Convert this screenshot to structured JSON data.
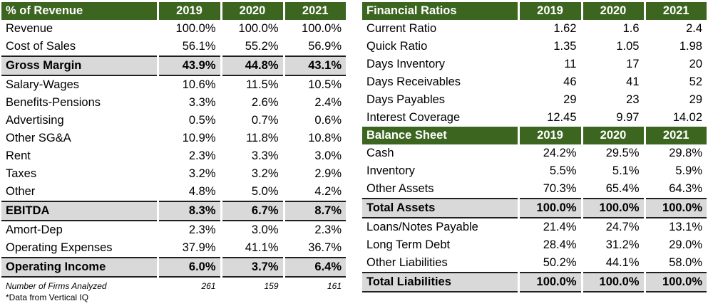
{
  "left_table": {
    "headers": [
      "% of Revenue",
      "2019",
      "2020",
      "2021"
    ],
    "rows": [
      {
        "label": "Revenue",
        "v": [
          "100.0%",
          "100.0%",
          "100.0%"
        ],
        "total": false
      },
      {
        "label": "Cost of Sales",
        "v": [
          "56.1%",
          "55.2%",
          "56.9%"
        ],
        "total": false
      },
      {
        "label": "Gross Margin",
        "v": [
          "43.9%",
          "44.8%",
          "43.1%"
        ],
        "total": true
      },
      {
        "label": "Salary-Wages",
        "v": [
          "10.6%",
          "11.5%",
          "10.5%"
        ],
        "total": false
      },
      {
        "label": "Benefits-Pensions",
        "v": [
          "3.3%",
          "2.6%",
          "2.4%"
        ],
        "total": false
      },
      {
        "label": "Advertising",
        "v": [
          "0.5%",
          "0.7%",
          "0.6%"
        ],
        "total": false
      },
      {
        "label": "Other SG&A",
        "v": [
          "10.9%",
          "11.8%",
          "10.8%"
        ],
        "total": false
      },
      {
        "label": "Rent",
        "v": [
          "2.3%",
          "3.3%",
          "3.0%"
        ],
        "total": false
      },
      {
        "label": "Taxes",
        "v": [
          "3.2%",
          "3.2%",
          "2.9%"
        ],
        "total": false
      },
      {
        "label": "Other",
        "v": [
          "4.8%",
          "5.0%",
          "4.2%"
        ],
        "total": false
      },
      {
        "label": "EBITDA",
        "v": [
          "8.3%",
          "6.7%",
          "8.7%"
        ],
        "total": true
      },
      {
        "label": "Amort-Dep",
        "v": [
          "2.3%",
          "3.0%",
          "2.3%"
        ],
        "total": false
      },
      {
        "label": "Operating Expenses",
        "v": [
          "37.9%",
          "41.1%",
          "36.7%"
        ],
        "total": false
      },
      {
        "label": "Operating Income",
        "v": [
          "6.0%",
          "3.7%",
          "6.4%"
        ],
        "total": true
      }
    ],
    "footer": {
      "label": "Number of Firms Analyzed",
      "v": [
        "261",
        "159",
        "161"
      ]
    }
  },
  "note": "*Data from Vertical IQ",
  "ratios_table": {
    "headers": [
      "Financial Ratios",
      "2019",
      "2020",
      "2021"
    ],
    "rows": [
      {
        "label": "Current Ratio",
        "v": [
          "1.62",
          "1.6",
          "2.4"
        ]
      },
      {
        "label": "Quick Ratio",
        "v": [
          "1.35",
          "1.05",
          "1.98"
        ]
      },
      {
        "label": "Days Inventory",
        "v": [
          "11",
          "17",
          "20"
        ]
      },
      {
        "label": "Days Receivables",
        "v": [
          "46",
          "41",
          "52"
        ]
      },
      {
        "label": "Days Payables",
        "v": [
          "29",
          "23",
          "29"
        ]
      },
      {
        "label": "Interest Coverage",
        "v": [
          "12.45",
          "9.97",
          "14.02"
        ]
      }
    ]
  },
  "balance_table": {
    "headers": [
      "Balance Sheet",
      "2019",
      "2020",
      "2021"
    ],
    "rows": [
      {
        "label": "Cash",
        "v": [
          "24.2%",
          "29.5%",
          "29.8%"
        ],
        "total": false
      },
      {
        "label": "Inventory",
        "v": [
          "5.5%",
          "5.1%",
          "5.9%"
        ],
        "total": false
      },
      {
        "label": "Other Assets",
        "v": [
          "70.3%",
          "65.4%",
          "64.3%"
        ],
        "total": false
      },
      {
        "label": "Total Assets",
        "v": [
          "100.0%",
          "100.0%",
          "100.0%"
        ],
        "total": true
      },
      {
        "label": "Loans/Notes Payable",
        "v": [
          "21.4%",
          "24.7%",
          "13.1%"
        ],
        "total": false
      },
      {
        "label": "Long Term Debt",
        "v": [
          "28.4%",
          "31.2%",
          "29.0%"
        ],
        "total": false
      },
      {
        "label": "Other Liabilities",
        "v": [
          "50.2%",
          "44.1%",
          "58.0%"
        ],
        "total": false
      },
      {
        "label": "Total Liabilities",
        "v": [
          "100.0%",
          "100.0%",
          "100.0%"
        ],
        "total": true
      }
    ]
  },
  "colors": {
    "header_bg": "#3c6520",
    "header_text": "#ffffff",
    "total_bg": "#d9d9d9"
  }
}
